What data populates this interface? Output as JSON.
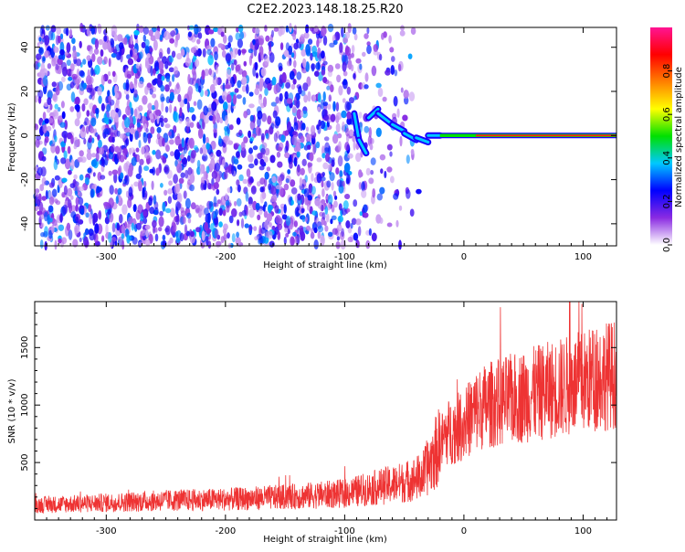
{
  "figure": {
    "title": "C2E2.2023.148.18.25.R20"
  },
  "chart_data": [
    {
      "type": "heatmap",
      "panel": "spectrogram",
      "xlabel": "Height of straight line (km)",
      "ylabel": "Frequency (Hz)",
      "xlim": [
        -360,
        128
      ],
      "ylim": [
        -50,
        49
      ],
      "xticks": [
        -300,
        -200,
        -100,
        0,
        100
      ],
      "yticks": [
        -40,
        -20,
        0,
        20,
        40
      ],
      "grid": false,
      "features": {
        "noise_region_x": [
          -360,
          -95
        ],
        "signal_line_frequency": 0,
        "signal_start_x": 10,
        "signal_end_x": 128,
        "dispersed_arrival_x": [
          -92,
          -20
        ]
      },
      "colorbar": {
        "label": "Normalized spectral amplitude",
        "range": [
          0,
          1
        ],
        "ticks": [
          0.0,
          0.2,
          0.4,
          0.6,
          0.8
        ],
        "tick_labels": [
          "0.0",
          "0.2",
          "0.4",
          "0.6",
          "0.8"
        ],
        "colors": [
          "#ffffff",
          "#8a2be2",
          "#0000ff",
          "#00c8ff",
          "#00e000",
          "#ffff00",
          "#ff8000",
          "#ff0000",
          "#ff1493"
        ]
      }
    },
    {
      "type": "line",
      "panel": "snr",
      "xlabel": "Height of straight line (km)",
      "ylabel": "SNR (10 * v/v)",
      "xlim": [
        -360,
        128
      ],
      "ylim": [
        0,
        1900
      ],
      "xticks": [
        -300,
        -200,
        -100,
        0,
        100
      ],
      "yticks": [
        500,
        1000,
        1500
      ],
      "grid": false,
      "color": "#ee3333",
      "trend_points": [
        [
          -360,
          130
        ],
        [
          -300,
          150
        ],
        [
          -250,
          170
        ],
        [
          -200,
          180
        ],
        [
          -150,
          200
        ],
        [
          -100,
          230
        ],
        [
          -75,
          280
        ],
        [
          -50,
          330
        ],
        [
          -35,
          380
        ],
        [
          -25,
          560
        ],
        [
          -15,
          750
        ],
        [
          0,
          830
        ],
        [
          10,
          950
        ],
        [
          20,
          1000
        ],
        [
          40,
          1050
        ],
        [
          60,
          1100
        ],
        [
          80,
          1150
        ],
        [
          100,
          1200
        ],
        [
          115,
          1250
        ],
        [
          128,
          1270
        ]
      ],
      "peak_point": [
        99,
        1880
      ]
    }
  ]
}
